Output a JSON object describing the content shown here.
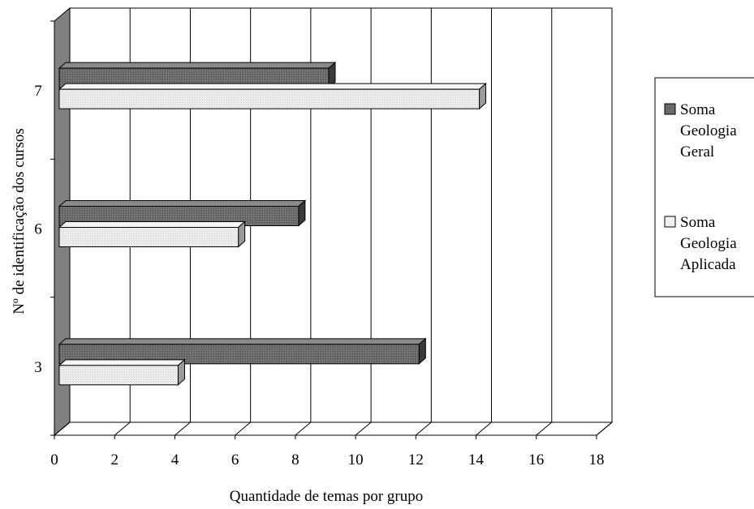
{
  "chart_data": {
    "type": "bar",
    "orientation": "horizontal",
    "style": "3d",
    "categories": [
      "3",
      "6",
      "7"
    ],
    "series": [
      {
        "name": "Soma Geologia Geral",
        "values": [
          12,
          8,
          9
        ],
        "color": "#777777"
      },
      {
        "name": "Soma Geologia Aplicada",
        "values": [
          4,
          6,
          14
        ],
        "color": "#e6e6e6"
      }
    ],
    "xlabel": "Quantidade de temas por grupo",
    "ylabel": "Nº de identificação dos cursos",
    "xlim": [
      0,
      18
    ],
    "xticks": [
      0,
      2,
      4,
      6,
      8,
      10,
      12,
      14,
      16,
      18
    ],
    "grid": "vertical",
    "legend_position": "right",
    "wall_color": "#808080"
  }
}
